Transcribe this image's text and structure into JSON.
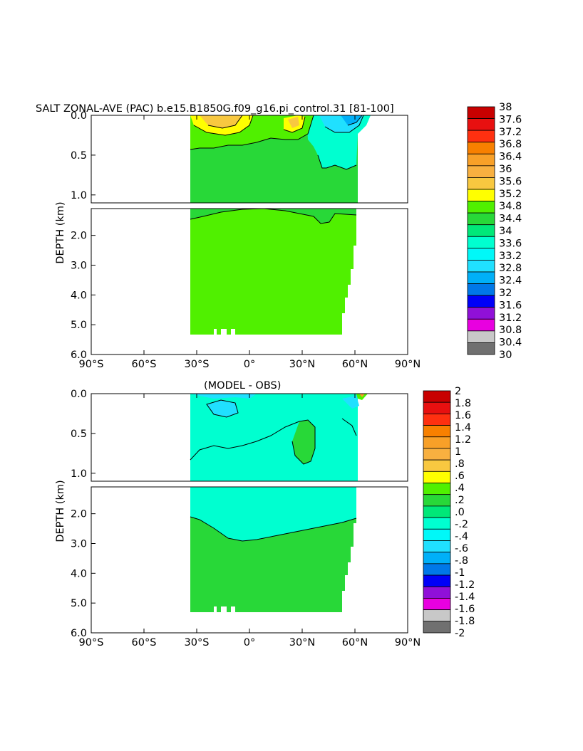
{
  "title": "SALT ZONAL-AVE (PAC) b.e15.B1850G.f09_g16.pi_control.31 [81-100]",
  "chart_data": [
    {
      "type": "heatmap",
      "subtitle": "",
      "ylabel": "DEPTH (km)",
      "xlabel": "",
      "x_ticks": [
        "90°S",
        "60°S",
        "30°S",
        "0°",
        "30°N",
        "60°N",
        "90°N"
      ],
      "x_range": [
        -90,
        90
      ],
      "y_ticks_upper": [
        "0.0",
        "0.5",
        "1.0"
      ],
      "y_ticks_lower": [
        "2.0",
        "3.0",
        "4.0",
        "5.0",
        "6.0"
      ],
      "y_range_upper_km": [
        0,
        1.1
      ],
      "y_range_lower_km": [
        1.1,
        6.0
      ],
      "colorbar_labels": [
        "38",
        "37.6",
        "37.2",
        "36.8",
        "36.4",
        "36",
        "35.6",
        "35.2",
        "34.8",
        "34.4",
        "34",
        "33.6",
        "33.2",
        "32.8",
        "32.4",
        "32",
        "31.6",
        "31.2",
        "30.8",
        "30.4",
        "30"
      ],
      "colorbar_colors": [
        "#c80000",
        "#e81010",
        "#ff3010",
        "#f88000",
        "#f8a028",
        "#f8b040",
        "#f8c840",
        "#ffff00",
        "#50f000",
        "#28d838",
        "#00e878",
        "#00ffd0",
        "#00f8f8",
        "#20e0ff",
        "#00b0f8",
        "#0078e8",
        "#0000f8",
        "#9010d8",
        "#e800e0",
        "#c8c8c8",
        "#707070"
      ],
      "dominant_value_range": "34.4–34.8",
      "data_longitude_extent": [
        "34°S",
        "62°N"
      ]
    },
    {
      "type": "heatmap",
      "subtitle": "(MODEL - OBS)",
      "ylabel": "DEPTH (km)",
      "xlabel": "",
      "x_ticks": [
        "90°S",
        "60°S",
        "30°S",
        "0°",
        "30°N",
        "60°N",
        "90°N"
      ],
      "x_range": [
        -90,
        90
      ],
      "y_ticks_upper": [
        "0.0",
        "0.5",
        "1.0"
      ],
      "y_ticks_lower": [
        "2.0",
        "3.0",
        "4.0",
        "5.0",
        "6.0"
      ],
      "y_range_upper_km": [
        0,
        1.1
      ],
      "y_range_lower_km": [
        1.1,
        6.0
      ],
      "colorbar_labels": [
        "2",
        "1.8",
        "1.6",
        "1.4",
        "1.2",
        "1",
        ".8",
        ".6",
        ".4",
        ".2",
        ".0",
        "-.2",
        "-.4",
        "-.6",
        "-.8",
        "-1",
        "-1.2",
        "-1.4",
        "-1.6",
        "-1.8",
        "-2"
      ],
      "colorbar_colors": [
        "#c80000",
        "#e81010",
        "#ff3010",
        "#f88000",
        "#f8a028",
        "#f8b040",
        "#f8c840",
        "#ffff00",
        "#50f000",
        "#28d838",
        "#00e878",
        "#00ffd0",
        "#00f8f8",
        "#20e0ff",
        "#00b0f8",
        "#0078e8",
        "#0000f8",
        "#9010d8",
        "#e800e0",
        "#c8c8c8",
        "#707070"
      ],
      "dominant_value_range": "-.2–.2",
      "data_longitude_extent": [
        "34°S",
        "62°N"
      ]
    }
  ]
}
